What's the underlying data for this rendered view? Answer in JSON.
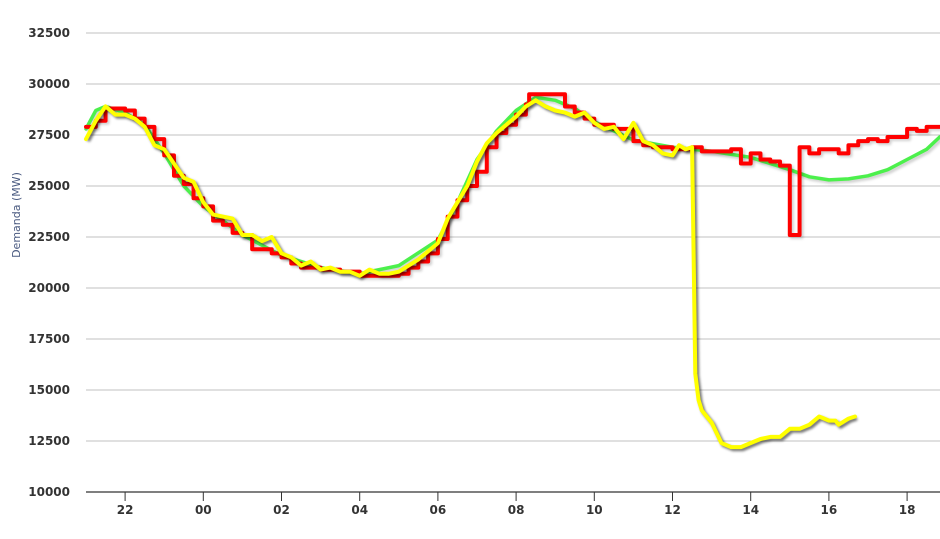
{
  "chart_data": {
    "type": "line",
    "title": "",
    "xlabel": "",
    "ylabel": "Demanda (MW)",
    "ylim": [
      10000,
      32500
    ],
    "yticks": [
      "10000",
      "12500",
      "15000",
      "17500",
      "20000",
      "22500",
      "25000",
      "27500",
      "30000",
      "32500"
    ],
    "xticks": [
      "22",
      "00",
      "02",
      "04",
      "06",
      "08",
      "10",
      "12",
      "14",
      "16",
      "18"
    ],
    "xrange": [
      "21:00",
      "18:50"
    ],
    "grid": true,
    "legend": "none",
    "series": [
      {
        "color": "#4cf04c",
        "style": "smooth",
        "x": [
          "21:00",
          "21:15",
          "21:30",
          "22:00",
          "22:30",
          "23:00",
          "23:30",
          "00:00",
          "01:00",
          "02:00",
          "03:00",
          "04:00",
          "05:00",
          "06:00",
          "06:30",
          "07:00",
          "07:30",
          "08:00",
          "08:30",
          "09:00",
          "09:30",
          "10:00",
          "11:00",
          "12:00",
          "13:00",
          "14:00",
          "15:00",
          "15:30",
          "16:00",
          "16:30",
          "17:00",
          "17:30",
          "18:00",
          "18:30",
          "18:50"
        ],
        "values": [
          27800,
          28700,
          28900,
          28600,
          28000,
          26600,
          25000,
          24000,
          22600,
          21600,
          21000,
          20700,
          21100,
          22350,
          24200,
          26300,
          27700,
          28700,
          29350,
          29200,
          28800,
          28150,
          27250,
          26900,
          26700,
          26400,
          25800,
          25450,
          25300,
          25350,
          25500,
          25800,
          26300,
          26800,
          27400
        ]
      },
      {
        "color": "#ff0000",
        "style": "step",
        "x": [
          "21:00",
          "21:15",
          "21:30",
          "22:00",
          "22:15",
          "22:30",
          "22:45",
          "23:00",
          "23:15",
          "23:30",
          "23:45",
          "00:00",
          "00:15",
          "00:30",
          "00:45",
          "01:00",
          "01:15",
          "01:30",
          "01:45",
          "02:00",
          "02:15",
          "02:30",
          "03:00",
          "03:30",
          "04:00",
          "04:30",
          "05:00",
          "05:15",
          "05:30",
          "05:45",
          "06:00",
          "06:15",
          "06:30",
          "06:45",
          "07:00",
          "07:15",
          "07:30",
          "07:45",
          "08:00",
          "08:15",
          "08:20",
          "09:00",
          "09:15",
          "09:30",
          "09:45",
          "10:00",
          "10:30",
          "11:00",
          "11:15",
          "11:30",
          "12:00",
          "12:30",
          "12:45",
          "13:30",
          "13:45",
          "14:00",
          "14:15",
          "14:30",
          "14:45",
          "15:00",
          "15:15",
          "15:30",
          "15:45",
          "16:15",
          "16:30",
          "16:45",
          "17:00",
          "17:15",
          "17:30",
          "18:00",
          "18:15",
          "18:30",
          "18:50"
        ],
        "values": [
          27900,
          28200,
          28800,
          28700,
          28300,
          27900,
          27300,
          26500,
          25500,
          25100,
          24400,
          24000,
          23300,
          23100,
          22700,
          22600,
          21900,
          21900,
          21700,
          21500,
          21200,
          21000,
          20900,
          20800,
          20600,
          20600,
          20700,
          21000,
          21300,
          21700,
          22400,
          23500,
          24300,
          25000,
          25700,
          26900,
          27600,
          28000,
          28500,
          29000,
          29500,
          29500,
          28900,
          28600,
          28300,
          28000,
          27800,
          27200,
          27000,
          26900,
          26800,
          26900,
          26700,
          26800,
          26100,
          26600,
          26300,
          26200,
          26000,
          22600,
          26900,
          26600,
          26800,
          26600,
          27000,
          27200,
          27300,
          27200,
          27400,
          27800,
          27700,
          27900,
          27900
        ]
      },
      {
        "color": "#ffff00",
        "style": "line",
        "shadow": true,
        "x": [
          "21:00",
          "21:15",
          "21:30",
          "21:45",
          "22:00",
          "22:15",
          "22:30",
          "22:45",
          "23:00",
          "23:15",
          "23:30",
          "23:45",
          "00:00",
          "00:15",
          "00:30",
          "00:45",
          "01:00",
          "01:15",
          "01:30",
          "01:45",
          "02:00",
          "02:15",
          "02:30",
          "02:45",
          "03:00",
          "03:15",
          "03:30",
          "03:45",
          "04:00",
          "04:15",
          "04:30",
          "04:45",
          "05:00",
          "05:15",
          "05:30",
          "05:45",
          "06:00",
          "06:15",
          "06:30",
          "06:45",
          "07:00",
          "07:15",
          "07:30",
          "07:45",
          "08:00",
          "08:15",
          "08:30",
          "08:45",
          "09:00",
          "09:15",
          "09:30",
          "09:45",
          "10:00",
          "10:15",
          "10:30",
          "10:45",
          "11:00",
          "11:15",
          "11:30",
          "11:45",
          "12:00",
          "12:10",
          "12:20",
          "12:30",
          "12:35",
          "12:40",
          "12:45",
          "13:00",
          "13:15",
          "13:30",
          "13:45",
          "14:00",
          "14:15",
          "14:30",
          "14:45",
          "15:00",
          "15:15",
          "15:30",
          "15:45",
          "16:00",
          "16:10",
          "16:15",
          "16:30",
          "16:40"
        ],
        "values": [
          27300,
          28200,
          28900,
          28500,
          28500,
          28300,
          27900,
          27000,
          26800,
          26100,
          25400,
          25200,
          24200,
          23600,
          23500,
          23400,
          22600,
          22600,
          22300,
          22500,
          21700,
          21500,
          21100,
          21300,
          20900,
          21000,
          20800,
          20800,
          20600,
          20900,
          20700,
          20700,
          20800,
          21100,
          21400,
          21800,
          22200,
          23400,
          24200,
          25000,
          26200,
          27100,
          27600,
          28000,
          28400,
          28900,
          29200,
          28900,
          28700,
          28600,
          28400,
          28600,
          28100,
          27800,
          27900,
          27300,
          28100,
          27200,
          27000,
          26600,
          26500,
          27000,
          26800,
          26900,
          15800,
          14500,
          14000,
          13400,
          12400,
          12200,
          12200,
          12400,
          12600,
          12700,
          12700,
          13100,
          13100,
          13300,
          13700,
          13500,
          13500,
          13300,
          13600,
          13700
        ]
      }
    ]
  }
}
